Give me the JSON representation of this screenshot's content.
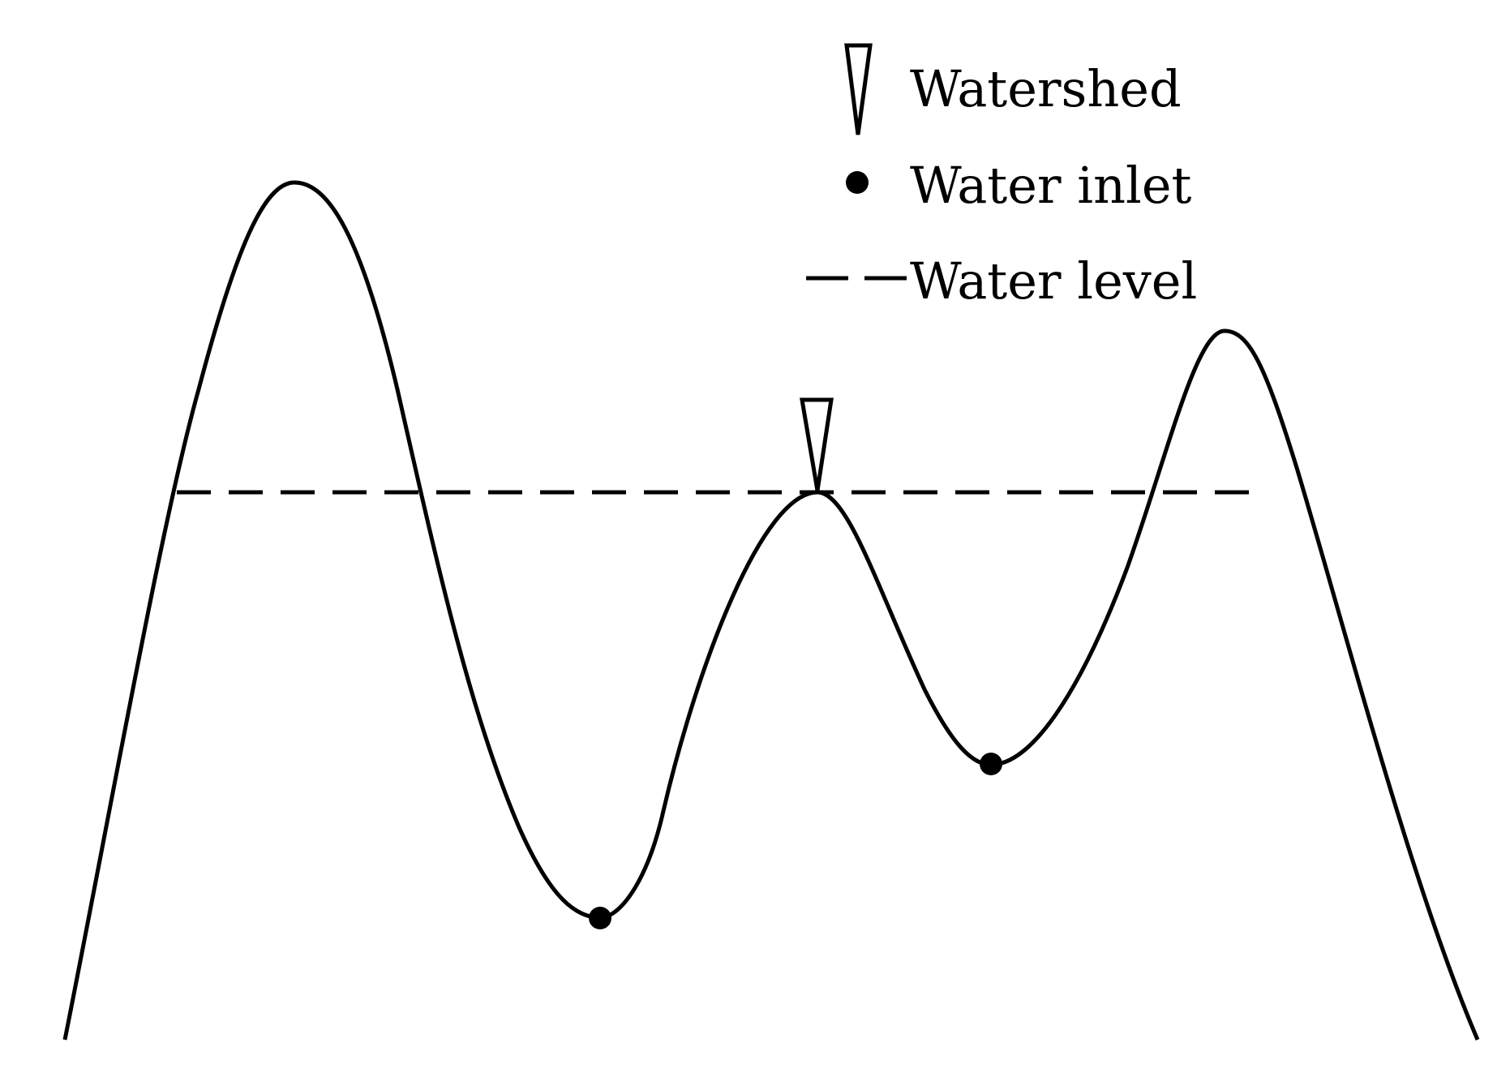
{
  "legend": {
    "watershed_label": "Watershed",
    "inlet_label": "Water inlet",
    "level_label": "Water level"
  },
  "colors": {
    "stroke": "#000000",
    "background": "#ffffff"
  },
  "icons": {
    "watershed": "inverted-triangle-icon",
    "inlet": "filled-circle-icon",
    "level": "dashed-line-icon"
  }
}
